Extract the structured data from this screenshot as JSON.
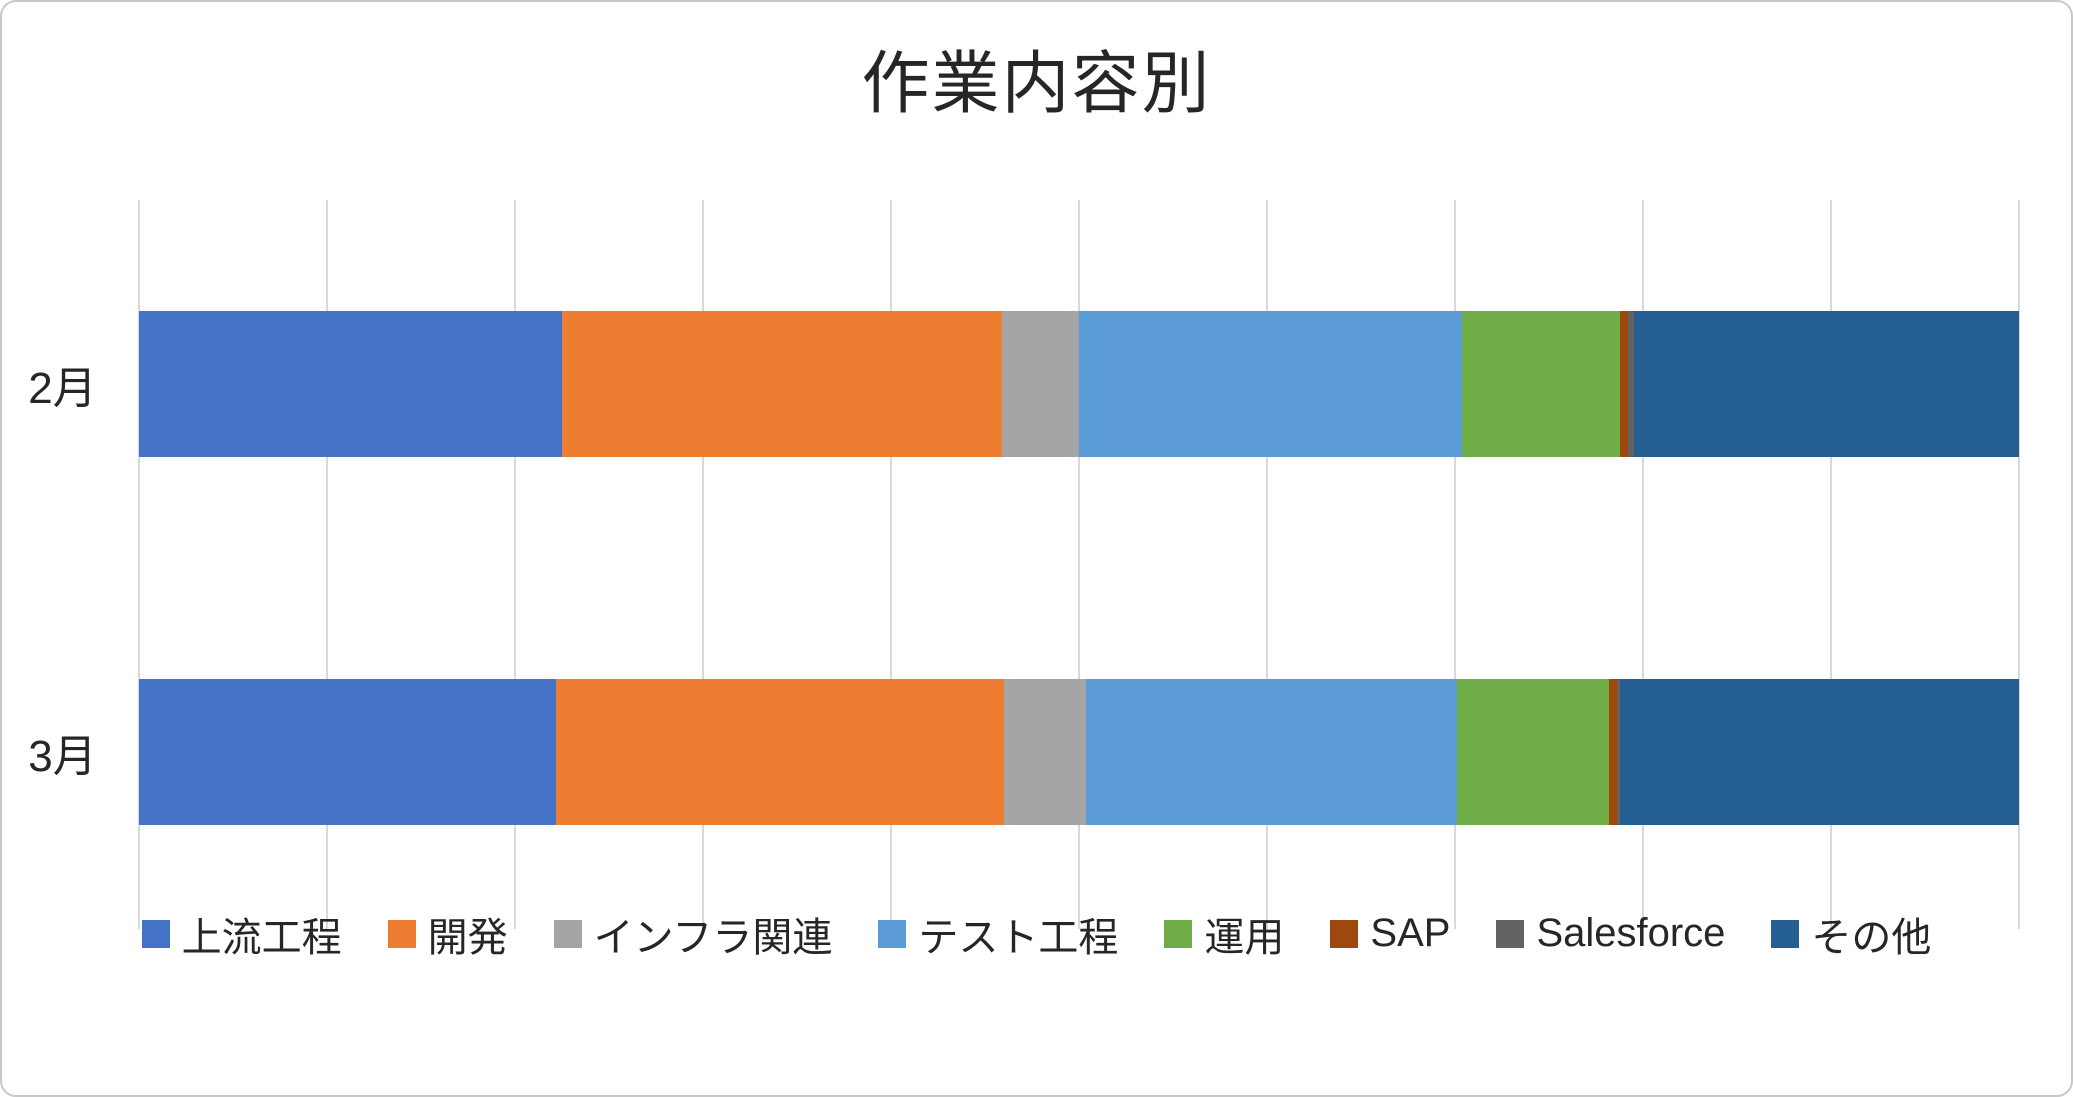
{
  "chart_data": {
    "type": "bar",
    "orientation": "horizontal",
    "stacked": "percent",
    "title": "作業内容別",
    "categories": [
      "2月",
      "3月"
    ],
    "series": [
      {
        "name": "上流工程",
        "color": "#4472C4",
        "values": [
          22.5,
          22.2
        ]
      },
      {
        "name": "開発",
        "color": "#ED7D31",
        "values": [
          23.4,
          23.8
        ]
      },
      {
        "name": "インフラ関連",
        "color": "#A5A5A5",
        "values": [
          4.1,
          4.4
        ]
      },
      {
        "name": "テスト工程",
        "color": "#5B9BD5",
        "values": [
          20.4,
          19.7
        ]
      },
      {
        "name": "運用",
        "color": "#70AD47",
        "values": [
          8.4,
          8.1
        ]
      },
      {
        "name": "SAP",
        "color": "#9E480E",
        "values": [
          0.4,
          0.4
        ]
      },
      {
        "name": "Salesforce",
        "color": "#636363",
        "values": [
          0.3,
          0.2
        ]
      },
      {
        "name": "その他",
        "color": "#255E91",
        "values": [
          20.5,
          21.2
        ]
      }
    ],
    "xlabel": "",
    "ylabel": "",
    "x_axis": {
      "min": 0,
      "max": 100,
      "gridline_count": 11,
      "tick_labels_visible": false
    },
    "legend_position": "bottom",
    "grid": "vertical-only"
  },
  "theme": {
    "gridline_color": "#D9D9D9",
    "frame_border_color": "#C8C8C8",
    "title_color": "#262626",
    "label_color": "#262626",
    "background": "#FFFFFF"
  }
}
